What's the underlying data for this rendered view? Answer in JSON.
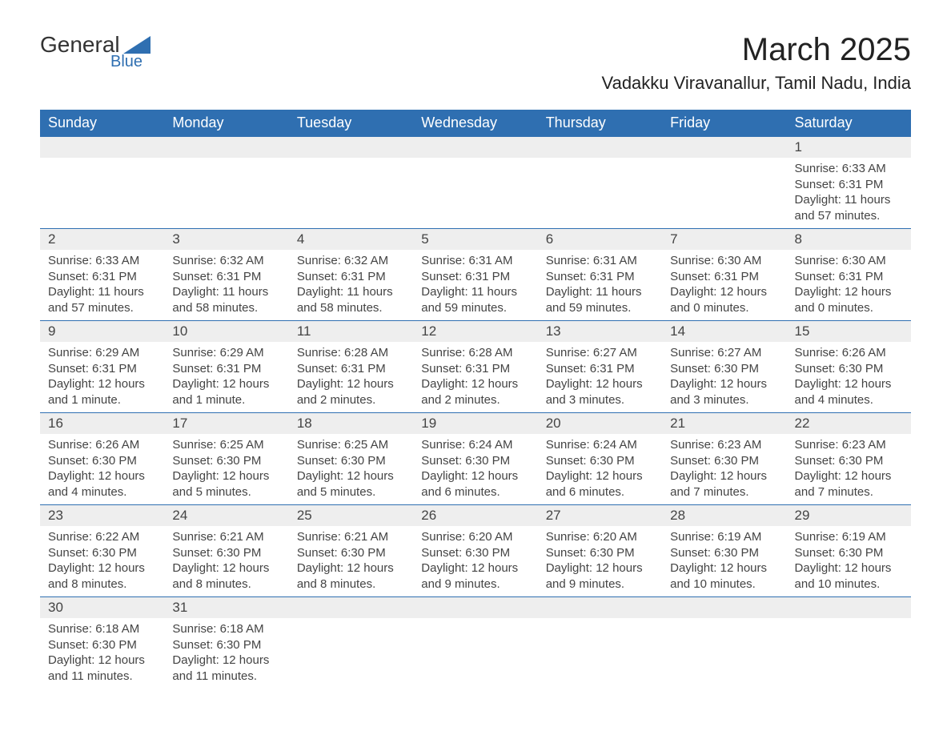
{
  "logo": {
    "text_main": "General",
    "text_sub": "Blue",
    "accent_color": "#2f6fb1"
  },
  "title": "March 2025",
  "location": "Vadakku Viravanallur, Tamil Nadu, India",
  "colors": {
    "header_bg": "#2f6fb1",
    "header_fg": "#ffffff",
    "daynum_bg": "#eeeeee",
    "text": "#444444",
    "border": "#2f6fb1",
    "page_bg": "#ffffff"
  },
  "typography": {
    "title_fontsize": 40,
    "location_fontsize": 22,
    "header_fontsize": 18,
    "daynum_fontsize": 17,
    "detail_fontsize": 15
  },
  "columns": [
    "Sunday",
    "Monday",
    "Tuesday",
    "Wednesday",
    "Thursday",
    "Friday",
    "Saturday"
  ],
  "labels": {
    "sunrise": "Sunrise",
    "sunset": "Sunset",
    "daylight": "Daylight"
  },
  "weeks": [
    [
      null,
      null,
      null,
      null,
      null,
      null,
      {
        "n": 1,
        "sunrise": "6:33 AM",
        "sunset": "6:31 PM",
        "daylight": "11 hours and 57 minutes."
      }
    ],
    [
      {
        "n": 2,
        "sunrise": "6:33 AM",
        "sunset": "6:31 PM",
        "daylight": "11 hours and 57 minutes."
      },
      {
        "n": 3,
        "sunrise": "6:32 AM",
        "sunset": "6:31 PM",
        "daylight": "11 hours and 58 minutes."
      },
      {
        "n": 4,
        "sunrise": "6:32 AM",
        "sunset": "6:31 PM",
        "daylight": "11 hours and 58 minutes."
      },
      {
        "n": 5,
        "sunrise": "6:31 AM",
        "sunset": "6:31 PM",
        "daylight": "11 hours and 59 minutes."
      },
      {
        "n": 6,
        "sunrise": "6:31 AM",
        "sunset": "6:31 PM",
        "daylight": "11 hours and 59 minutes."
      },
      {
        "n": 7,
        "sunrise": "6:30 AM",
        "sunset": "6:31 PM",
        "daylight": "12 hours and 0 minutes."
      },
      {
        "n": 8,
        "sunrise": "6:30 AM",
        "sunset": "6:31 PM",
        "daylight": "12 hours and 0 minutes."
      }
    ],
    [
      {
        "n": 9,
        "sunrise": "6:29 AM",
        "sunset": "6:31 PM",
        "daylight": "12 hours and 1 minute."
      },
      {
        "n": 10,
        "sunrise": "6:29 AM",
        "sunset": "6:31 PM",
        "daylight": "12 hours and 1 minute."
      },
      {
        "n": 11,
        "sunrise": "6:28 AM",
        "sunset": "6:31 PM",
        "daylight": "12 hours and 2 minutes."
      },
      {
        "n": 12,
        "sunrise": "6:28 AM",
        "sunset": "6:31 PM",
        "daylight": "12 hours and 2 minutes."
      },
      {
        "n": 13,
        "sunrise": "6:27 AM",
        "sunset": "6:31 PM",
        "daylight": "12 hours and 3 minutes."
      },
      {
        "n": 14,
        "sunrise": "6:27 AM",
        "sunset": "6:30 PM",
        "daylight": "12 hours and 3 minutes."
      },
      {
        "n": 15,
        "sunrise": "6:26 AM",
        "sunset": "6:30 PM",
        "daylight": "12 hours and 4 minutes."
      }
    ],
    [
      {
        "n": 16,
        "sunrise": "6:26 AM",
        "sunset": "6:30 PM",
        "daylight": "12 hours and 4 minutes."
      },
      {
        "n": 17,
        "sunrise": "6:25 AM",
        "sunset": "6:30 PM",
        "daylight": "12 hours and 5 minutes."
      },
      {
        "n": 18,
        "sunrise": "6:25 AM",
        "sunset": "6:30 PM",
        "daylight": "12 hours and 5 minutes."
      },
      {
        "n": 19,
        "sunrise": "6:24 AM",
        "sunset": "6:30 PM",
        "daylight": "12 hours and 6 minutes."
      },
      {
        "n": 20,
        "sunrise": "6:24 AM",
        "sunset": "6:30 PM",
        "daylight": "12 hours and 6 minutes."
      },
      {
        "n": 21,
        "sunrise": "6:23 AM",
        "sunset": "6:30 PM",
        "daylight": "12 hours and 7 minutes."
      },
      {
        "n": 22,
        "sunrise": "6:23 AM",
        "sunset": "6:30 PM",
        "daylight": "12 hours and 7 minutes."
      }
    ],
    [
      {
        "n": 23,
        "sunrise": "6:22 AM",
        "sunset": "6:30 PM",
        "daylight": "12 hours and 8 minutes."
      },
      {
        "n": 24,
        "sunrise": "6:21 AM",
        "sunset": "6:30 PM",
        "daylight": "12 hours and 8 minutes."
      },
      {
        "n": 25,
        "sunrise": "6:21 AM",
        "sunset": "6:30 PM",
        "daylight": "12 hours and 8 minutes."
      },
      {
        "n": 26,
        "sunrise": "6:20 AM",
        "sunset": "6:30 PM",
        "daylight": "12 hours and 9 minutes."
      },
      {
        "n": 27,
        "sunrise": "6:20 AM",
        "sunset": "6:30 PM",
        "daylight": "12 hours and 9 minutes."
      },
      {
        "n": 28,
        "sunrise": "6:19 AM",
        "sunset": "6:30 PM",
        "daylight": "12 hours and 10 minutes."
      },
      {
        "n": 29,
        "sunrise": "6:19 AM",
        "sunset": "6:30 PM",
        "daylight": "12 hours and 10 minutes."
      }
    ],
    [
      {
        "n": 30,
        "sunrise": "6:18 AM",
        "sunset": "6:30 PM",
        "daylight": "12 hours and 11 minutes."
      },
      {
        "n": 31,
        "sunrise": "6:18 AM",
        "sunset": "6:30 PM",
        "daylight": "12 hours and 11 minutes."
      },
      null,
      null,
      null,
      null,
      null
    ]
  ]
}
